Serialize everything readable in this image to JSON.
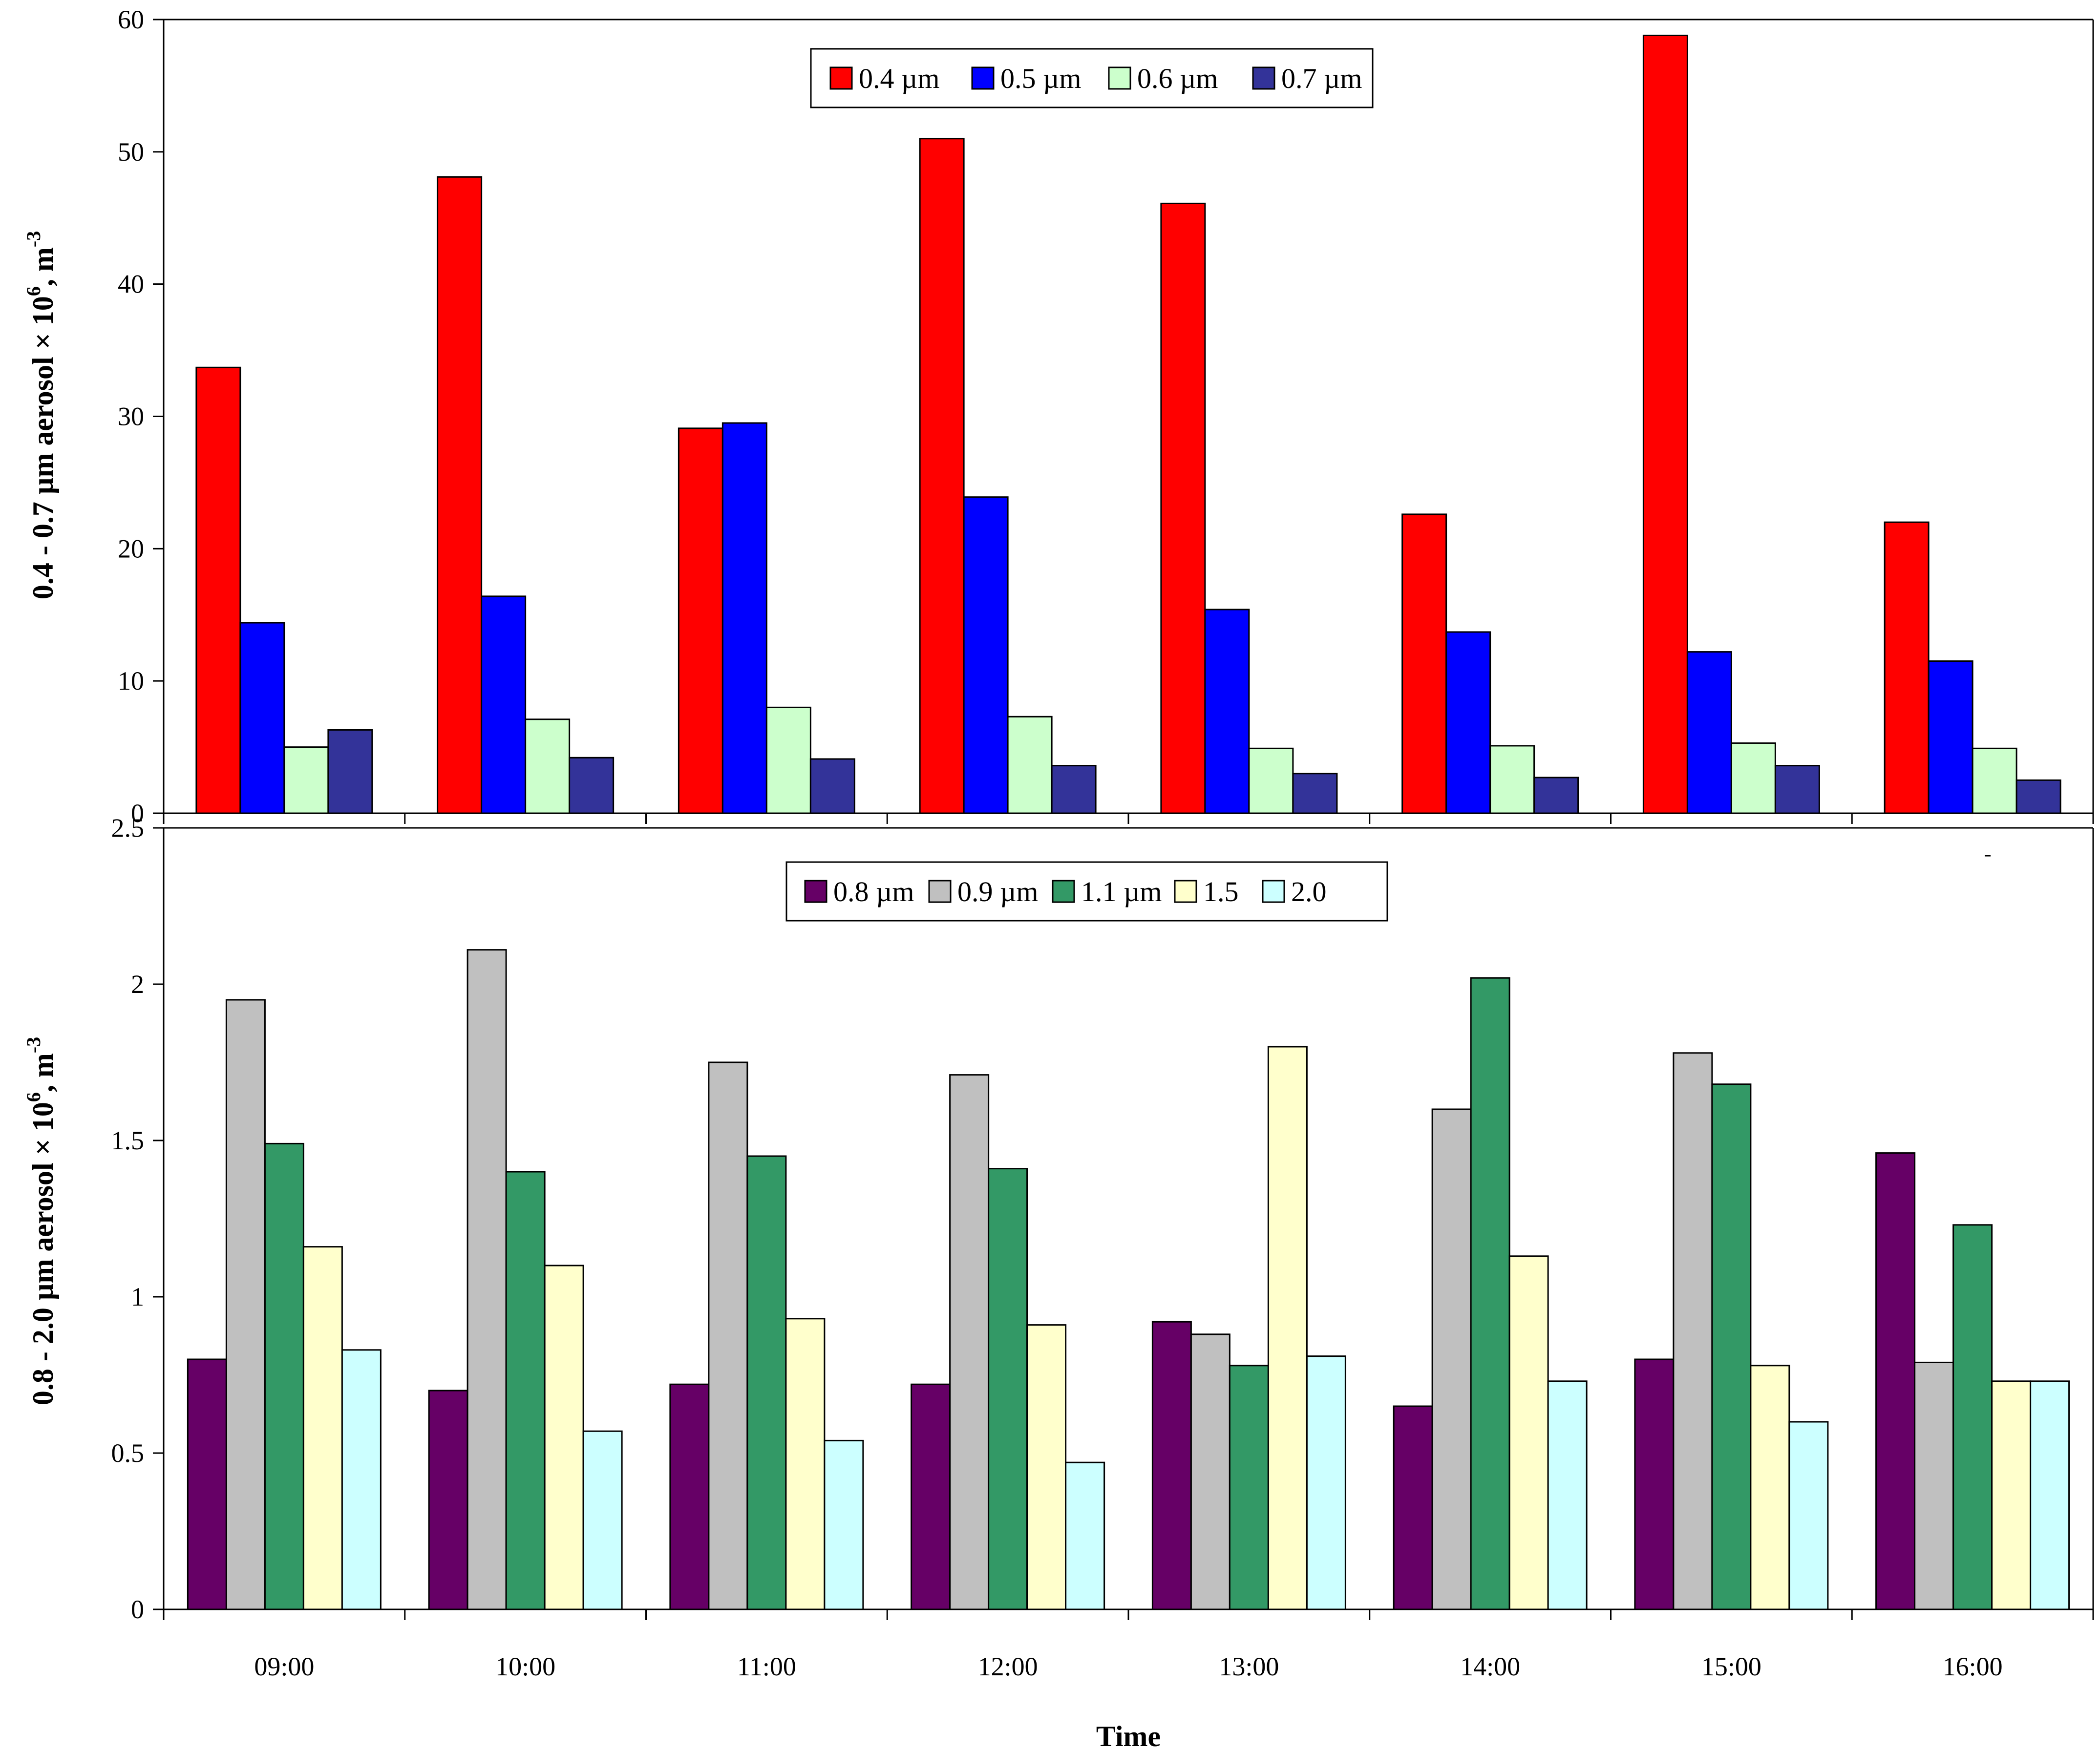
{
  "chart_data": [
    {
      "type": "bar",
      "ylabel_main": "0.4 - 0.7 µm aerosol × 10",
      "ylabel_exp": "6",
      "ylabel_unit": ", m",
      "ylabel_unit_exp": "-3",
      "ylim": [
        0,
        60
      ],
      "yticks": [
        "0",
        "10",
        "20",
        "30",
        "40",
        "50",
        "60"
      ],
      "categories": [
        "09:00",
        "10:00",
        "11:00",
        "12:00",
        "13:00",
        "14:00",
        "15:00",
        "16:00"
      ],
      "series": [
        {
          "name": "0.4 µm",
          "color": "#ff0000",
          "values": [
            33.7,
            48.1,
            29.1,
            51.0,
            46.1,
            22.6,
            58.8,
            22.0
          ]
        },
        {
          "name": "0.5 µm",
          "color": "#0000ff",
          "values": [
            14.4,
            16.4,
            29.5,
            23.9,
            15.4,
            13.7,
            12.2,
            11.5
          ]
        },
        {
          "name": "0.6 µm",
          "color": "#ccffcc",
          "values": [
            5.0,
            7.1,
            8.0,
            7.3,
            4.9,
            5.1,
            5.3,
            4.9
          ]
        },
        {
          "name": "0.7 µm",
          "color": "#333399",
          "values": [
            6.3,
            4.2,
            4.1,
            3.6,
            3.0,
            2.7,
            3.6,
            2.5
          ]
        }
      ]
    },
    {
      "type": "bar",
      "ylabel_main": "0.8 - 2.0 µm aerosol × 10",
      "ylabel_exp": "6",
      "ylabel_unit": ", m",
      "ylabel_unit_exp": "-3",
      "xlabel": "Time",
      "ylim": [
        0,
        2.5
      ],
      "yticks": [
        "0",
        "0.5",
        "1",
        "1.5",
        "2",
        "2.5"
      ],
      "categories": [
        "09:00",
        "10:00",
        "11:00",
        "12:00",
        "13:00",
        "14:00",
        "15:00",
        "16:00"
      ],
      "series": [
        {
          "name": "0.8 µm",
          "color": "#660066",
          "values": [
            0.8,
            0.7,
            0.72,
            0.72,
            0.92,
            0.65,
            0.8,
            1.46
          ]
        },
        {
          "name": "0.9 µm",
          "color": "#c0c0c0",
          "values": [
            1.95,
            2.11,
            1.75,
            1.71,
            0.88,
            1.6,
            1.78,
            0.79
          ]
        },
        {
          "name": "1.1 µm",
          "color": "#339966",
          "values": [
            1.49,
            1.4,
            1.45,
            1.41,
            0.78,
            2.02,
            1.68,
            1.23
          ]
        },
        {
          "name": "1.5",
          "color": "#ffffcc",
          "values": [
            1.16,
            1.1,
            0.93,
            0.91,
            1.8,
            1.13,
            0.78,
            0.73
          ]
        },
        {
          "name": "2.0",
          "color": "#ccffff",
          "values": [
            0.83,
            0.57,
            0.54,
            0.47,
            0.81,
            0.73,
            0.6,
            0.73
          ]
        }
      ]
    }
  ]
}
